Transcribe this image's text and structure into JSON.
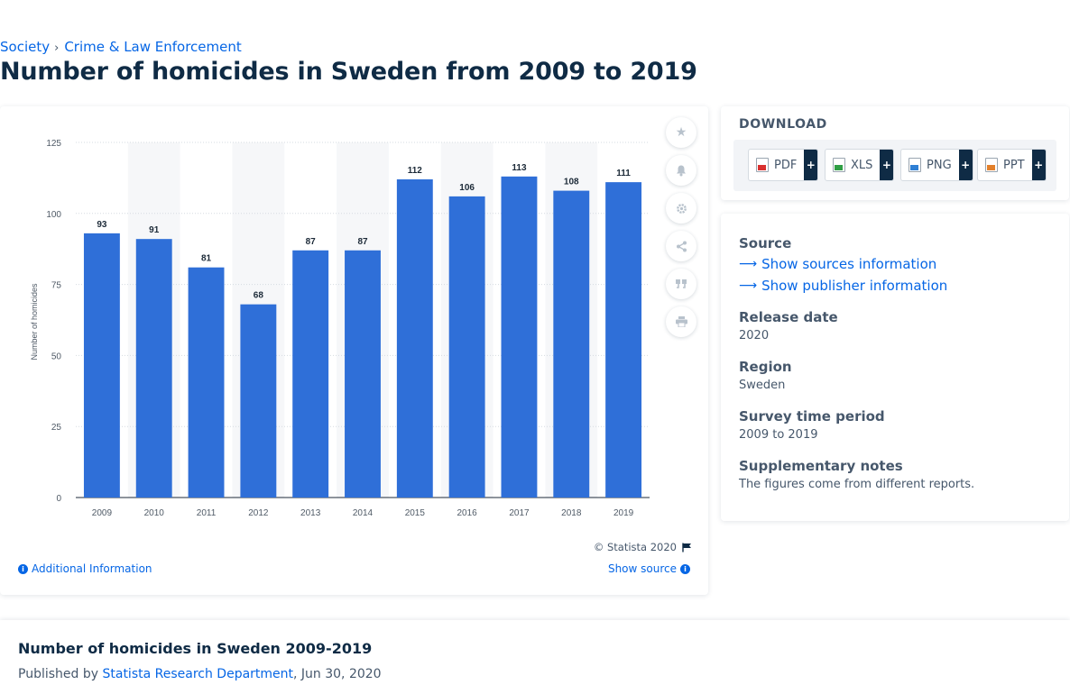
{
  "breadcrumb": {
    "parent": "Society",
    "current": "Crime & Law Enforcement"
  },
  "page_title": "Number of homicides in Sweden from 2009 to 2019",
  "chart_data": {
    "type": "bar",
    "categories": [
      "2009",
      "2010",
      "2011",
      "2012",
      "2013",
      "2014",
      "2015",
      "2016",
      "2017",
      "2018",
      "2019"
    ],
    "values": [
      93,
      91,
      81,
      68,
      87,
      87,
      112,
      106,
      113,
      108,
      111
    ],
    "xlabel": "",
    "ylabel": "Number of homicides",
    "ylim": [
      0,
      125
    ],
    "yticks": [
      0,
      25,
      50,
      75,
      100,
      125
    ],
    "grid": true,
    "data_labels": true,
    "bar_color": "#2f6fd8",
    "alt_band_color": "#f6f7f9"
  },
  "toolbar": {
    "icons": [
      "star-icon",
      "bell-icon",
      "gear-icon",
      "share-icon",
      "quote-icon",
      "print-icon"
    ]
  },
  "footer": {
    "copyright": "© Statista 2020",
    "additional_info": "Additional Information",
    "show_source": "Show source"
  },
  "download": {
    "title": "DOWNLOAD",
    "buttons": [
      {
        "label": "PDF",
        "plus": "+"
      },
      {
        "label": "XLS",
        "plus": "+"
      },
      {
        "label": "PNG",
        "plus": "+"
      },
      {
        "label": "PPT",
        "plus": "+"
      }
    ]
  },
  "meta": {
    "source_label": "Source",
    "sources_link": "Show sources information",
    "publisher_link": "Show publisher information",
    "release_label": "Release date",
    "release_value": "2020",
    "region_label": "Region",
    "region_value": "Sweden",
    "period_label": "Survey time period",
    "period_value": "2009 to 2019",
    "notes_label": "Supplementary notes",
    "notes_value": "The figures come from different reports."
  },
  "report": {
    "title": "Number of homicides in Sweden 2009-2019",
    "published_prefix": "Published by",
    "publisher": "Statista Research Department",
    "date": ", Jun 30, 2020"
  },
  "colors": {
    "accent": "#0666e5",
    "text": "#0f2b45",
    "muted": "#46576b"
  }
}
